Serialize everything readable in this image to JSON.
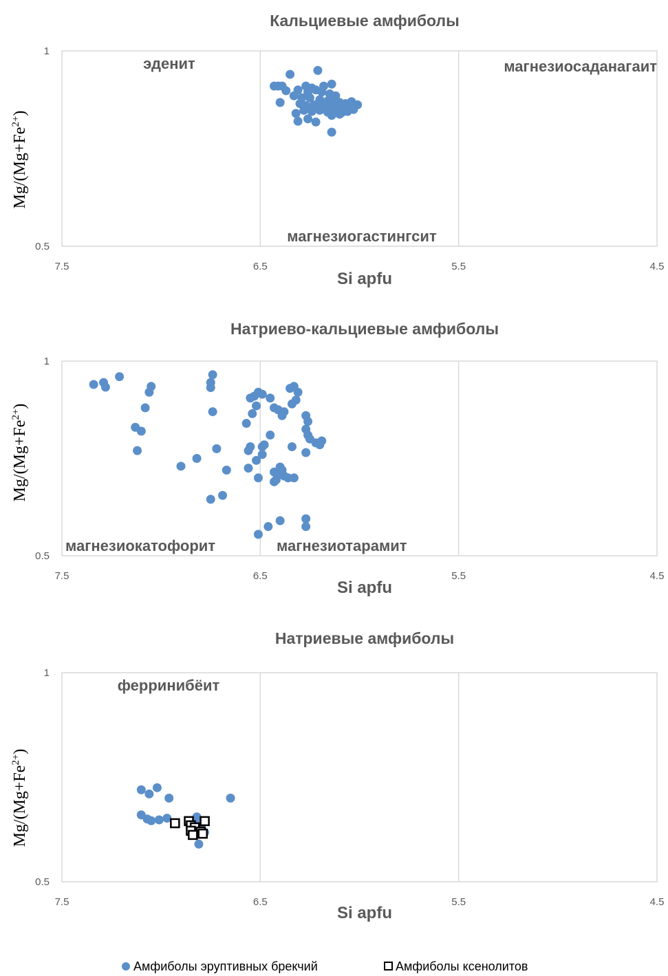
{
  "chart_data": [
    {
      "type": "scatter",
      "title": "Кальциевые амфиболы",
      "xlabel": "Si apfu",
      "ylabel": "Mg/(Mg+Fe2+)",
      "ylabel_parts": [
        "Mg/(Mg+Fe",
        "2+",
        ")"
      ],
      "xlim": [
        7.5,
        4.5
      ],
      "ylim": [
        0.5,
        1
      ],
      "x_ticks": [
        "7.5",
        "6.5",
        "5.5",
        "4.5"
      ],
      "y_ticks": [
        "1",
        "0.5"
      ],
      "region_labels": [
        "эденит",
        "магнезиосаданагаит",
        "магнезиогастингсит"
      ],
      "series": [
        {
          "name": "Амфиболы эруптивных брекчий",
          "marker": "circle",
          "color": "#5b8fc9",
          "points": [
            [
              6.35,
              0.94
            ],
            [
              6.21,
              0.95
            ],
            [
              6.27,
              0.91
            ],
            [
              6.24,
              0.905
            ],
            [
              6.18,
              0.91
            ],
            [
              6.14,
              0.915
            ],
            [
              6.31,
              0.9
            ],
            [
              6.26,
              0.895
            ],
            [
              6.22,
              0.9
            ],
            [
              6.19,
              0.895
            ],
            [
              6.15,
              0.89
            ],
            [
              6.12,
              0.885
            ],
            [
              6.33,
              0.885
            ],
            [
              6.29,
              0.88
            ],
            [
              6.25,
              0.88
            ],
            [
              6.2,
              0.875
            ],
            [
              6.16,
              0.872
            ],
            [
              6.13,
              0.87
            ],
            [
              6.1,
              0.868
            ],
            [
              6.07,
              0.865
            ],
            [
              6.04,
              0.87
            ],
            [
              6.3,
              0.865
            ],
            [
              6.27,
              0.86
            ],
            [
              6.23,
              0.862
            ],
            [
              6.19,
              0.858
            ],
            [
              6.15,
              0.855
            ],
            [
              6.11,
              0.86
            ],
            [
              6.08,
              0.855
            ],
            [
              6.05,
              0.858
            ],
            [
              6.01,
              0.862
            ],
            [
              6.28,
              0.848
            ],
            [
              6.24,
              0.845
            ],
            [
              6.2,
              0.848
            ],
            [
              6.16,
              0.843
            ],
            [
              6.12,
              0.846
            ],
            [
              6.09,
              0.842
            ],
            [
              6.06,
              0.845
            ],
            [
              6.32,
              0.84
            ],
            [
              6.14,
              0.835
            ],
            [
              6.1,
              0.838
            ],
            [
              6.03,
              0.85
            ],
            [
              6.43,
              0.91
            ],
            [
              6.41,
              0.91
            ],
            [
              6.39,
              0.91
            ],
            [
              6.37,
              0.898
            ],
            [
              6.4,
              0.868
            ],
            [
              6.31,
              0.82
            ],
            [
              6.26,
              0.826
            ],
            [
              6.22,
              0.818
            ],
            [
              6.14,
              0.792
            ]
          ]
        }
      ]
    },
    {
      "type": "scatter",
      "title": "Натриево-кальциевые амфиболы",
      "xlabel": "Si apfu",
      "ylabel": "Mg/(Mg+Fe2+)",
      "ylabel_parts": [
        "Mg/(Mg+Fe",
        "2+",
        ")"
      ],
      "xlim": [
        7.5,
        4.5
      ],
      "ylim": [
        0.5,
        1
      ],
      "x_ticks": [
        "7.5",
        "6.5",
        "5.5",
        "4.5"
      ],
      "y_ticks": [
        "1",
        "0.5"
      ],
      "region_labels": [
        "магнезиокатофорит",
        "магнезиотарамит"
      ],
      "series": [
        {
          "name": "Амфиболы эруптивных брекчий",
          "marker": "circle",
          "color": "#5b8fc9",
          "points": [
            [
              7.34,
              0.94
            ],
            [
              7.29,
              0.945
            ],
            [
              7.28,
              0.933
            ],
            [
              7.21,
              0.96
            ],
            [
              7.05,
              0.935
            ],
            [
              7.06,
              0.92
            ],
            [
              7.08,
              0.88
            ],
            [
              7.13,
              0.83
            ],
            [
              7.1,
              0.82
            ],
            [
              7.12,
              0.77
            ],
            [
              6.74,
              0.965
            ],
            [
              6.75,
              0.945
            ],
            [
              6.75,
              0.932
            ],
            [
              6.74,
              0.87
            ],
            [
              6.72,
              0.775
            ],
            [
              6.69,
              0.655
            ],
            [
              6.75,
              0.645
            ],
            [
              6.82,
              0.75
            ],
            [
              6.67,
              0.72
            ],
            [
              6.9,
              0.73
            ],
            [
              6.57,
              0.84
            ],
            [
              6.55,
              0.905
            ],
            [
              6.53,
              0.91
            ],
            [
              6.51,
              0.92
            ],
            [
              6.49,
              0.915
            ],
            [
              6.52,
              0.885
            ],
            [
              6.54,
              0.865
            ],
            [
              6.45,
              0.905
            ],
            [
              6.43,
              0.88
            ],
            [
              6.41,
              0.875
            ],
            [
              6.38,
              0.87
            ],
            [
              6.39,
              0.86
            ],
            [
              6.34,
              0.89
            ],
            [
              6.35,
              0.93
            ],
            [
              6.33,
              0.935
            ],
            [
              6.31,
              0.92
            ],
            [
              6.32,
              0.9
            ],
            [
              6.27,
              0.86
            ],
            [
              6.26,
              0.845
            ],
            [
              6.27,
              0.825
            ],
            [
              6.26,
              0.81
            ],
            [
              6.25,
              0.8
            ],
            [
              6.22,
              0.79
            ],
            [
              6.2,
              0.785
            ],
            [
              6.19,
              0.795
            ],
            [
              6.27,
              0.765
            ],
            [
              6.34,
              0.78
            ],
            [
              6.45,
              0.81
            ],
            [
              6.48,
              0.785
            ],
            [
              6.49,
              0.78
            ],
            [
              6.49,
              0.76
            ],
            [
              6.55,
              0.78
            ],
            [
              6.56,
              0.77
            ],
            [
              6.52,
              0.745
            ],
            [
              6.56,
              0.725
            ],
            [
              6.51,
              0.7
            ],
            [
              6.43,
              0.715
            ],
            [
              6.41,
              0.71
            ],
            [
              6.39,
              0.72
            ],
            [
              6.38,
              0.705
            ],
            [
              6.36,
              0.7
            ],
            [
              6.33,
              0.7
            ],
            [
              6.42,
              0.695
            ],
            [
              6.4,
              0.728
            ],
            [
              6.43,
              0.69
            ],
            [
              6.4,
              0.59
            ],
            [
              6.46,
              0.575
            ],
            [
              6.27,
              0.595
            ],
            [
              6.27,
              0.575
            ],
            [
              6.51,
              0.555
            ]
          ]
        }
      ]
    },
    {
      "type": "scatter",
      "title": "Натриевые амфиболы",
      "xlabel": "Si apfu",
      "ylabel": "Mg/(Mg+Fe2+)",
      "ylabel_parts": [
        "Mg/(Mg+Fe",
        "2+",
        ")"
      ],
      "xlim": [
        7.5,
        4.5
      ],
      "ylim": [
        0.5,
        1
      ],
      "x_ticks": [
        "7.5",
        "6.5",
        "5.5",
        "4.5"
      ],
      "y_ticks": [
        "1",
        "0.5"
      ],
      "region_labels": [
        "ферринибёит"
      ],
      "series": [
        {
          "name": "Амфиболы эруптивных брекчий",
          "marker": "circle",
          "color": "#5b8fc9",
          "points": [
            [
              7.1,
              0.72
            ],
            [
              7.06,
              0.71
            ],
            [
              7.02,
              0.725
            ],
            [
              6.96,
              0.7
            ],
            [
              6.65,
              0.7
            ],
            [
              7.1,
              0.66
            ],
            [
              7.07,
              0.65
            ],
            [
              7.01,
              0.648
            ],
            [
              6.97,
              0.652
            ],
            [
              7.05,
              0.646
            ],
            [
              6.86,
              0.643
            ],
            [
              6.82,
              0.655
            ],
            [
              6.81,
              0.64
            ],
            [
              6.82,
              0.625
            ],
            [
              6.78,
              0.618
            ],
            [
              6.8,
              0.632
            ],
            [
              6.81,
              0.59
            ]
          ]
        },
        {
          "name": "Амфиболы ксенолитов",
          "marker": "square",
          "color": "#000000",
          "points": [
            [
              6.93,
              0.64
            ],
            [
              6.86,
              0.645
            ],
            [
              6.85,
              0.635
            ],
            [
              6.83,
              0.63
            ],
            [
              6.78,
              0.645
            ],
            [
              6.85,
              0.622
            ],
            [
              6.8,
              0.62
            ],
            [
              6.84,
              0.612
            ],
            [
              6.79,
              0.615
            ]
          ]
        }
      ]
    }
  ],
  "legend": [
    {
      "label": "Амфиболы эруптивных брекчий",
      "marker": "circle",
      "color": "#5b8fc9"
    },
    {
      "label": "Амфиболы ксенолитов",
      "marker": "square",
      "color": "#000000"
    }
  ]
}
